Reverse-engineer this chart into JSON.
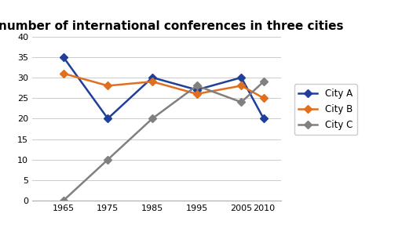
{
  "title": "The number of international conferences in three cities",
  "x_values": [
    1965,
    1975,
    1985,
    1995,
    2005,
    2010
  ],
  "city_a": [
    35,
    20,
    30,
    27,
    30,
    20
  ],
  "city_b": [
    31,
    28,
    29,
    26,
    28,
    25
  ],
  "city_c": [
    0,
    10,
    20,
    28,
    24,
    29
  ],
  "color_a": "#1f3f99",
  "color_b": "#e07020",
  "color_c": "#808080",
  "ylim": [
    0,
    40
  ],
  "yticks": [
    0,
    5,
    10,
    15,
    20,
    25,
    30,
    35,
    40
  ],
  "xticks": [
    1965,
    1975,
    1985,
    1995,
    2005,
    2010
  ],
  "legend_labels": [
    "City A",
    "City B",
    "City C"
  ],
  "title_fontsize": 11,
  "marker": "D",
  "linewidth": 1.8,
  "markersize": 5,
  "background_color": "#ffffff"
}
